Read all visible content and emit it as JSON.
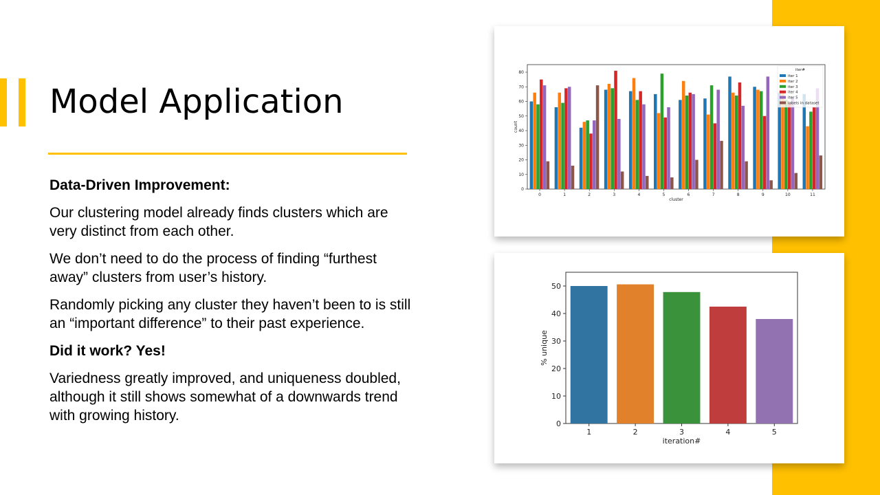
{
  "slide": {
    "title": "Model Application",
    "paragraphs": [
      {
        "text": "Data-Driven Improvement:",
        "bold": true
      },
      {
        "text": "Our clustering model already finds clusters which are very distinct from each other.",
        "bold": false
      },
      {
        "text": "We don’t need to do the process of finding “furthest away” clusters from user’s history.",
        "bold": false
      },
      {
        "text": "Randomly picking any cluster they haven’t been to is still an “important difference” to their past experience.",
        "bold": false
      },
      {
        "text": "Did it work? Yes!",
        "bold": true
      },
      {
        "text": "Variedness greatly improved, and uniqueness doubled, although it still shows somewhat of a downwards trend with growing history.",
        "bold": false
      }
    ],
    "colors": {
      "accent": "#FFC000"
    }
  },
  "chart_data": [
    {
      "type": "bar",
      "title": "",
      "xlabel": "cluster",
      "ylabel": "count",
      "ylim": [
        0,
        80
      ],
      "yticks": [
        0,
        10,
        20,
        30,
        40,
        50,
        60,
        70,
        80
      ],
      "categories": [
        "0",
        "1",
        "2",
        "3",
        "4",
        "5",
        "6",
        "7",
        "8",
        "9",
        "10",
        "11"
      ],
      "legend": {
        "title": "iter#",
        "placement": "top-right"
      },
      "series": [
        {
          "name": "iter 1",
          "color": "#1f77b4",
          "values": [
            60,
            56,
            42,
            68,
            67,
            65,
            61,
            62,
            77,
            70,
            66,
            65
          ]
        },
        {
          "name": "iter 2",
          "color": "#ff7f0e",
          "values": [
            66,
            66,
            46,
            72,
            76,
            52,
            74,
            51,
            66,
            68,
            67,
            43
          ]
        },
        {
          "name": "iter 3",
          "color": "#2ca02c",
          "values": [
            58,
            59,
            47,
            69,
            61,
            79,
            64,
            71,
            64,
            67,
            61,
            53
          ]
        },
        {
          "name": "iter 4",
          "color": "#d62728",
          "values": [
            75,
            69,
            38,
            81,
            67,
            49,
            66,
            45,
            73,
            50,
            59,
            56
          ]
        },
        {
          "name": "iter 5",
          "color": "#9467bd",
          "values": [
            71,
            70,
            47,
            48,
            58,
            56,
            65,
            68,
            57,
            77,
            63,
            69
          ]
        },
        {
          "name": "labels in dataset",
          "color": "#8c564b",
          "values": [
            19,
            16,
            71,
            12,
            9,
            8,
            20,
            33,
            19,
            6,
            11,
            23
          ]
        }
      ]
    },
    {
      "type": "bar",
      "title": "",
      "xlabel": "iteration#",
      "ylabel": "% unique",
      "ylim": [
        0,
        55
      ],
      "yticks": [
        0,
        10,
        20,
        30,
        40,
        50
      ],
      "categories": [
        "1",
        "2",
        "3",
        "4",
        "5"
      ],
      "values": [
        50,
        50.6,
        47.8,
        42.5,
        38
      ],
      "colors": [
        "#3274a1",
        "#e1812c",
        "#3a923a",
        "#c03d3e",
        "#9372b2"
      ]
    }
  ]
}
